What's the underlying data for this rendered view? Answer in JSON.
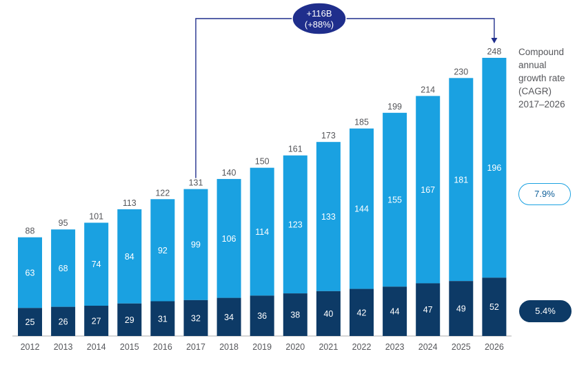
{
  "chart_data": {
    "type": "bar",
    "stacked": true,
    "categories": [
      "2012",
      "2013",
      "2014",
      "2015",
      "2016",
      "2017",
      "2018",
      "2019",
      "2020",
      "2021",
      "2022",
      "2023",
      "2024",
      "2025",
      "2026"
    ],
    "series": [
      {
        "values": [
          25,
          26,
          27,
          29,
          31,
          32,
          34,
          36,
          38,
          40,
          42,
          44,
          47,
          49,
          52
        ],
        "color": "#0d3a66"
      },
      {
        "values": [
          63,
          68,
          74,
          84,
          92,
          99,
          106,
          114,
          123,
          133,
          144,
          155,
          167,
          181,
          196
        ],
        "color": "#1aa1e1"
      }
    ],
    "totals": [
      88,
      95,
      101,
      113,
      122,
      131,
      140,
      150,
      161,
      173,
      185,
      199,
      214,
      230,
      248
    ],
    "ylim": [
      0,
      248
    ],
    "grid": false,
    "annotation": {
      "line1": "+116B",
      "line2": "(+88%)",
      "from": "2017",
      "to": "2026"
    },
    "cagr": {
      "label": "Compound\nannual\ngrowth rate\n(CAGR)\n2017–2026",
      "top_series_rate": "7.9%",
      "bottom_series_rate": "5.4%"
    }
  },
  "colors": {
    "dark": "#0d3a66",
    "light": "#1aa1e1",
    "annotation": "#1f2e8c",
    "axis_text": "#55565a"
  }
}
